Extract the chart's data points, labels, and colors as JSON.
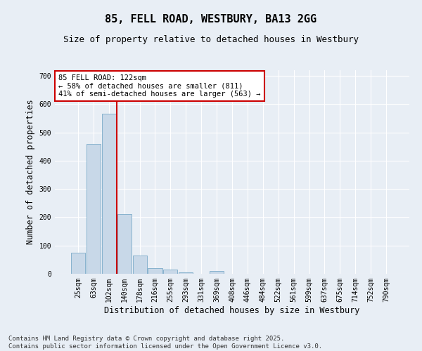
{
  "title": "85, FELL ROAD, WESTBURY, BA13 2GG",
  "subtitle": "Size of property relative to detached houses in Westbury",
  "xlabel": "Distribution of detached houses by size in Westbury",
  "ylabel": "Number of detached properties",
  "categories": [
    "25sqm",
    "63sqm",
    "102sqm",
    "140sqm",
    "178sqm",
    "216sqm",
    "255sqm",
    "293sqm",
    "331sqm",
    "369sqm",
    "408sqm",
    "446sqm",
    "484sqm",
    "522sqm",
    "561sqm",
    "599sqm",
    "637sqm",
    "675sqm",
    "714sqm",
    "752sqm",
    "790sqm"
  ],
  "values": [
    75,
    460,
    565,
    210,
    65,
    20,
    15,
    5,
    0,
    10,
    0,
    0,
    0,
    0,
    0,
    0,
    0,
    0,
    0,
    0,
    0
  ],
  "bar_color": "#c8d8e8",
  "bar_edge_color": "#7aaac8",
  "vline_x": 2.5,
  "vline_color": "#cc0000",
  "annotation_text": "85 FELL ROAD: 122sqm\n← 58% of detached houses are smaller (811)\n41% of semi-detached houses are larger (563) →",
  "annotation_box_color": "#ffffff",
  "annotation_box_edge": "#cc0000",
  "ylim": [
    0,
    720
  ],
  "yticks": [
    0,
    100,
    200,
    300,
    400,
    500,
    600,
    700
  ],
  "bg_color": "#e8eef5",
  "grid_color": "#ffffff",
  "footer": "Contains HM Land Registry data © Crown copyright and database right 2025.\nContains public sector information licensed under the Open Government Licence v3.0.",
  "title_fontsize": 11,
  "subtitle_fontsize": 9,
  "tick_fontsize": 7,
  "label_fontsize": 8.5,
  "footer_fontsize": 6.5
}
